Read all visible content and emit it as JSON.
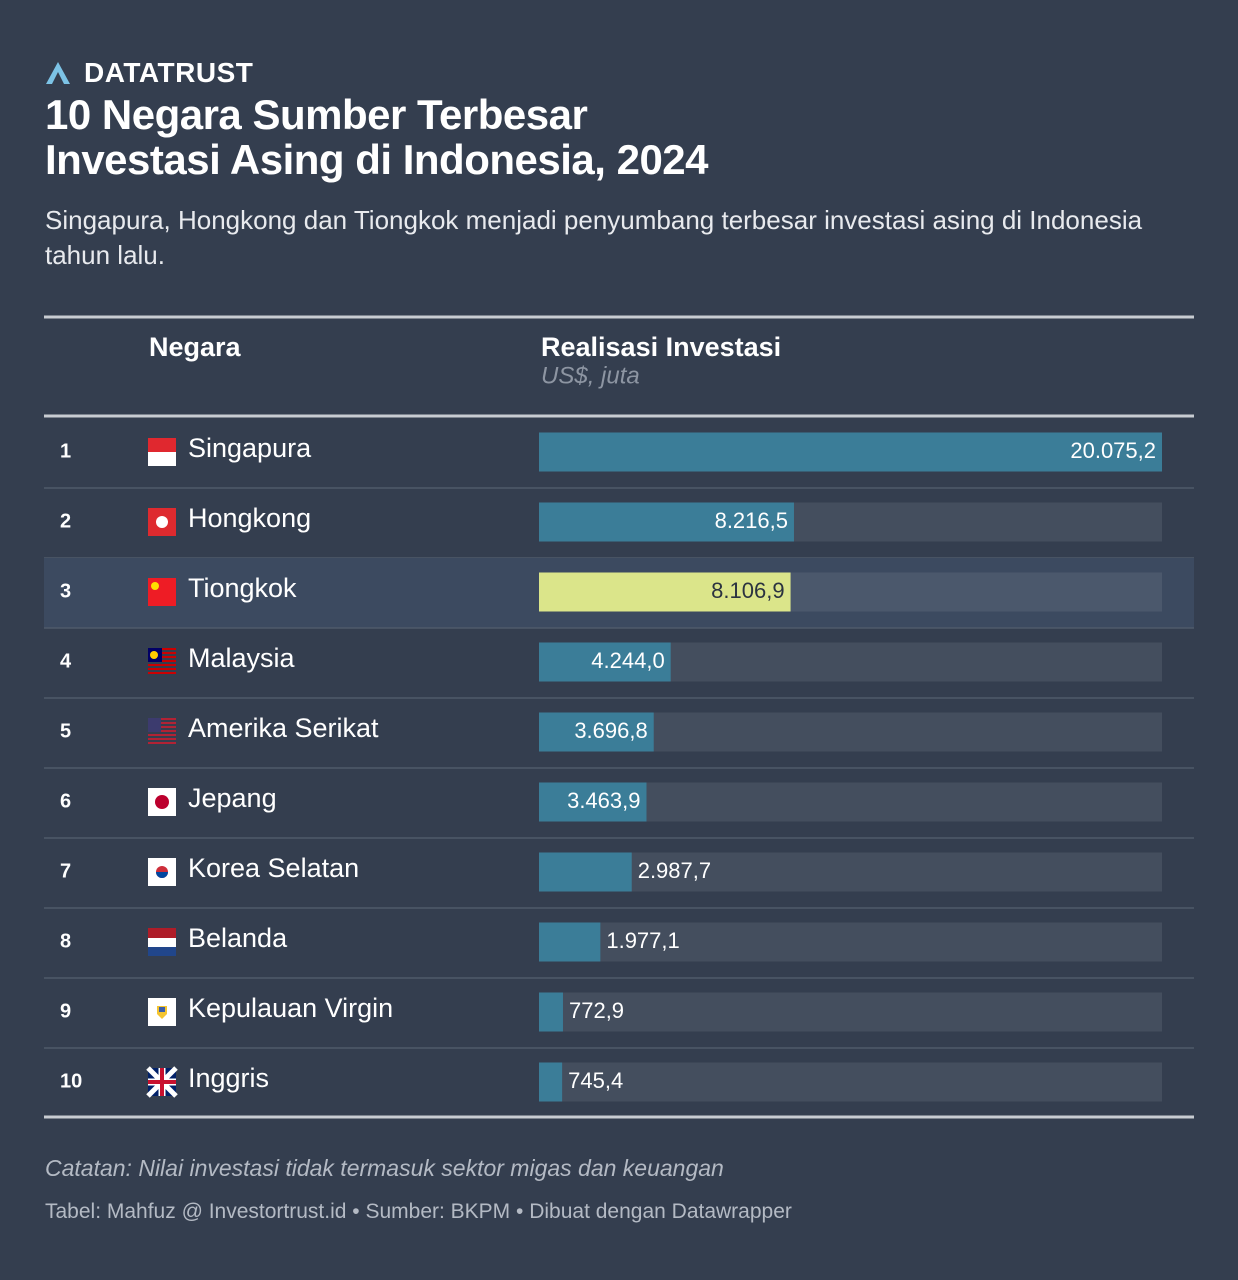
{
  "brand": "DATATRUST",
  "chart_data": {
    "type": "bar",
    "title": "10 Negara Sumber Terbesar Investasi Asing di Indonesia, 2024",
    "subtitle": "Singapura, Hongkong dan Tiongkok menjadi penyumbang terbesar investasi asing di Indonesia tahun lalu.",
    "column_headers": [
      "Negara",
      "Realisasi Investasi"
    ],
    "value_unit": "US$, juta",
    "ranks": [
      "1",
      "2",
      "3",
      "4",
      "5",
      "6",
      "7",
      "8",
      "9",
      "10"
    ],
    "categories": [
      "Singapura",
      "Hongkong",
      "Tiongkok",
      "Malaysia",
      "Amerika Serikat",
      "Jepang",
      "Korea Selatan",
      "Belanda",
      "Kepulauan Virgin",
      "Inggris"
    ],
    "values": [
      20075.2,
      8216.5,
      8106.9,
      4244.0,
      3696.8,
      3463.9,
      2987.7,
      1977.1,
      772.9,
      745.4
    ],
    "value_labels": [
      "20.075,2",
      "8.216,5",
      "8.106,9",
      "4.244,0",
      "3.696,8",
      "3.463,9",
      "2.987,7",
      "1.977,1",
      "772,9",
      "745,4"
    ],
    "xlim": [
      0,
      20075.2
    ],
    "color": "#3b7d98",
    "colors": [
      "#3b7d98",
      "#3b7d98",
      "#dbe58a",
      "#3b7d98",
      "#3b7d98",
      "#3b7d98",
      "#3b7d98",
      "#3b7d98",
      "#3b7d98",
      "#3b7d98"
    ],
    "note": "Catatan: Nilai investasi tidak termasuk sektor migas dan keuangan",
    "source": "Tabel: Mahfuz @ Investortrust.id • Sumber: BKPM • Dibuat dengan Datawrapper"
  }
}
